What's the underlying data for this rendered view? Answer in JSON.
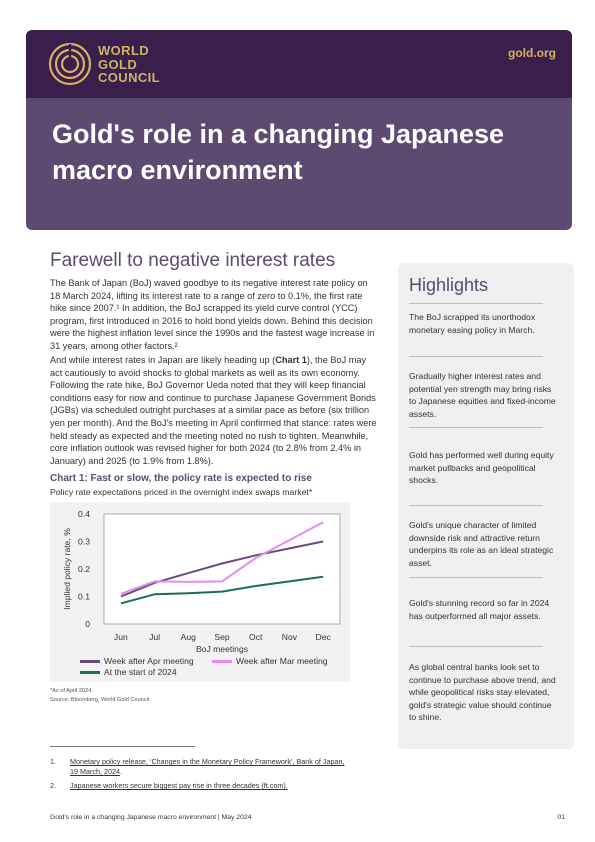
{
  "brand": {
    "logo_name": "World Gold Council logo",
    "logo_line1": "WORLD",
    "logo_line2": "GOLD",
    "logo_line3": "COUNCIL",
    "site": "gold.org",
    "gold_color": "#d4b063",
    "header_color": "#3a1f4d",
    "title_band_color": "#5c4a70"
  },
  "title_line1": "Gold's role in a changing Japanese",
  "title_line2": "macro environment",
  "section_title": "Farewell to negative interest rates",
  "paragraph1": "The Bank of Japan (BoJ) waved goodbye to its negative interest rate policy on 18 March 2024, lifting its interest rate to a range of zero to 0.1%, the first rate hike since 2007.¹ In addition, the BoJ scrapped its yield curve control (YCC) program, first introduced in 2016 to hold bond yields down. Behind this decision were the highest inflation level since the 1990s and the fastest wage increase in 31 years, among other factors.²",
  "paragraph2_a": "And while interest rates in Japan are likely heading up (",
  "paragraph2_ref": "Chart 1",
  "paragraph2_b": "), the BoJ may act cautiously to avoid shocks to global markets as well as its own economy. Following the rate hike, BoJ Governor Ueda noted that they will keep financial conditions easy for now and continue to purchase Japanese Government Bonds (JGBs) via scheduled outright purchases at a similar pace as before (six trillion yen per month). And the BoJ's meeting in April confirmed that stance: rates were held steady as expected and the meeting noted no rush to tighten. Meanwhile, core inflation outlook was revised higher for both 2024 (to 2.8% from 2.4% in January) and 2025 (to 1.9% from 1.8%).",
  "chart_title": "Chart 1: Fast or slow, the policy rate is expected to rise",
  "chart_subtitle": "Policy rate expectations priced in the overnight index swaps market*",
  "chart_data": {
    "type": "line",
    "categories": [
      "Jun",
      "Jul",
      "Aug",
      "Sep",
      "Oct",
      "Nov",
      "Dec"
    ],
    "xlabel": "BoJ meetings",
    "ylabel": "Implied policy rate, %",
    "ylim": [
      0,
      0.4
    ],
    "yticks": [
      "0",
      "0.1",
      "0.2",
      "0.3",
      "0.4"
    ],
    "grid": false,
    "legend": "bottom",
    "series": [
      {
        "name": "Week after Apr meeting",
        "color": "#6b4a80",
        "values": [
          0.1,
          0.15,
          0.185,
          0.22,
          0.25,
          0.275,
          0.3
        ]
      },
      {
        "name": "Week after Mar meeting",
        "color": "#e28cf0",
        "values": [
          0.11,
          0.155,
          0.153,
          0.155,
          0.24,
          0.305,
          0.37
        ]
      },
      {
        "name": "At the start of 2024",
        "color": "#1e6b5a",
        "values": [
          0.075,
          0.108,
          0.112,
          0.118,
          0.138,
          0.155,
          0.172
        ]
      }
    ]
  },
  "chart_note": "*As of April 2024.",
  "chart_source": "Source: Bloomberg, World Gold Council",
  "footnotes": [
    {
      "num": "1.",
      "text": "Monetary policy release, ‘Changes in the Monetary Policy Framework’, Bank of Japan,",
      "text2": "19 March, 2024",
      "suffix": "."
    },
    {
      "num": "2.",
      "text": "Japanese workers secure biggest pay rise in three decades (ft.com).",
      "text2": "",
      "suffix": ""
    }
  ],
  "highlights": {
    "title": "Highlights",
    "items": [
      "The BoJ scrapped its unorthodox monetary easing policy in March.",
      "Gradually higher interest rates and potential yen strength may bring risks to Japanese equities and fixed-income assets.",
      "Gold has performed well during equity market pullbacks and geopolitical shocks.",
      "Gold's unique character of limited downside risk and attractive return underpins its role as an ideal strategic asset.",
      "Gold's stunning record so far in 2024 has outperformed all major assets.",
      "As global central banks look set to continue to purchase above trend, and while geopolitical risks stay elevated, gold's strategic value should continue to shine."
    ]
  },
  "footer_left": "Gold's role in a changing Japanese macro environment  |  May 2024",
  "footer_right": "01"
}
